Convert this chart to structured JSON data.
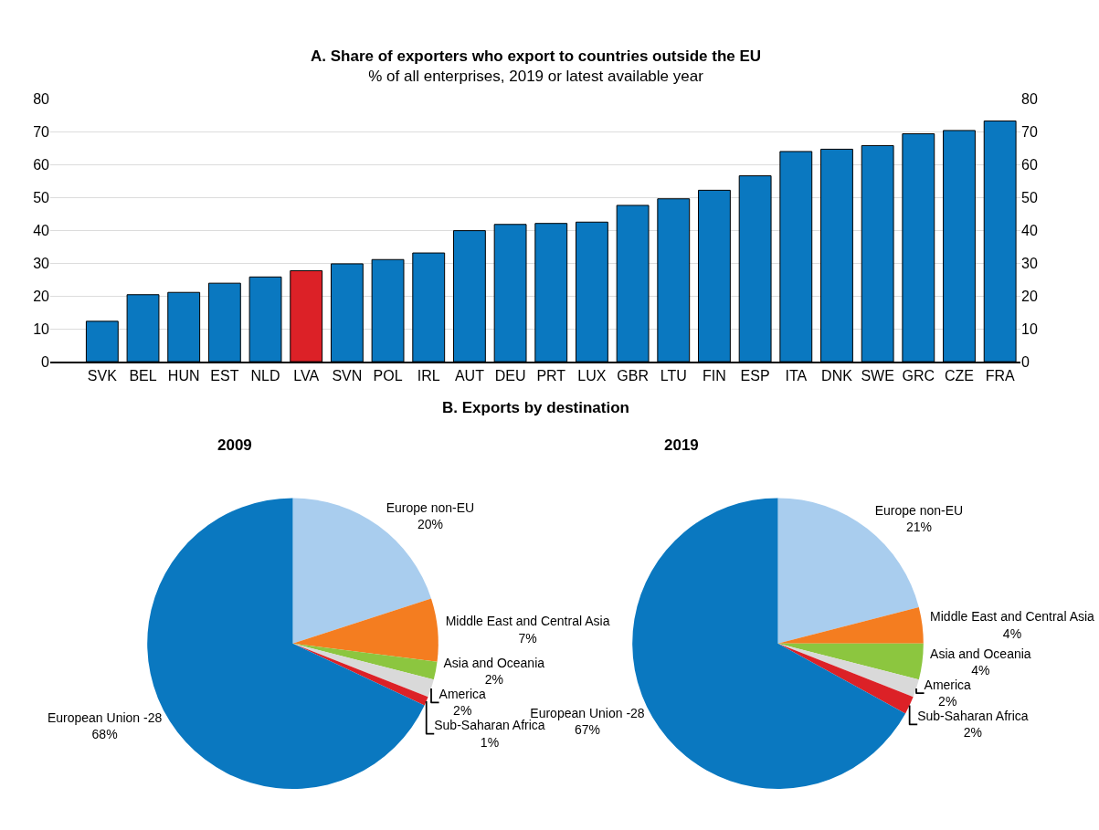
{
  "chart_data": [
    {
      "type": "bar",
      "title": "A. Share of exporters who export to countries outside the EU",
      "subtitle": "% of all enterprises, 2019 or latest available year",
      "categories": [
        "SVK",
        "BEL",
        "HUN",
        "EST",
        "NLD",
        "LVA",
        "SVN",
        "POL",
        "IRL",
        "AUT",
        "DEU",
        "PRT",
        "LUX",
        "GBR",
        "LTU",
        "FIN",
        "ESP",
        "ITA",
        "DNK",
        "SWE",
        "GRC",
        "CZE",
        "FRA"
      ],
      "values": [
        12.3,
        20.4,
        21.1,
        23.9,
        25.8,
        27.7,
        29.8,
        31.1,
        33.1,
        39.9,
        41.8,
        42.1,
        42.5,
        47.6,
        49.6,
        52.2,
        56.6,
        64.0,
        64.7,
        65.8,
        69.4,
        70.4,
        73.3
      ],
      "colors": [
        "#0a78c0",
        "#0a78c0",
        "#0a78c0",
        "#0a78c0",
        "#0a78c0",
        "#dc2127",
        "#0a78c0",
        "#0a78c0",
        "#0a78c0",
        "#0a78c0",
        "#0a78c0",
        "#0a78c0",
        "#0a78c0",
        "#0a78c0",
        "#0a78c0",
        "#0a78c0",
        "#0a78c0",
        "#0a78c0",
        "#0a78c0",
        "#0a78c0",
        "#0a78c0",
        "#0a78c0",
        "#0a78c0"
      ],
      "ylim": [
        0,
        80
      ],
      "yticks": [
        0,
        10,
        20,
        30,
        40,
        50,
        60,
        70,
        80
      ],
      "y2lim": [
        0,
        80
      ],
      "y2ticks": [
        0,
        10,
        20,
        30,
        40,
        50,
        60,
        70,
        80
      ],
      "grid": "y",
      "legend": false
    },
    {
      "type": "pie",
      "title": "2009",
      "annotations": [
        "B. Exports by destination"
      ],
      "categories": [
        "Europe non-EU",
        "Middle East and Central Asia",
        "Asia and Oceania",
        "America",
        "Sub-Saharan Africa",
        "European Union -28"
      ],
      "values": [
        20,
        7,
        2,
        2,
        1,
        68
      ],
      "value_labels": [
        "20%",
        "7%",
        "2%",
        "2%",
        "1%",
        "68%"
      ],
      "colors": [
        "#a9cdee",
        "#f47d20",
        "#8cc63f",
        "#d9d9d9",
        "#dc2127",
        "#0a78c0"
      ],
      "legend": false
    },
    {
      "type": "pie",
      "title": "2019",
      "categories": [
        "Europe non-EU",
        "Middle East and Central Asia",
        "Asia and Oceania",
        "America",
        "Sub-Saharan Africa",
        "European Union -28"
      ],
      "values": [
        21,
        4,
        4,
        2,
        2,
        67
      ],
      "value_labels": [
        "21%",
        "4%",
        "4%",
        "2%",
        "2%",
        "67%"
      ],
      "colors": [
        "#a9cdee",
        "#f47d20",
        "#8cc63f",
        "#d9d9d9",
        "#dc2127",
        "#0a78c0"
      ],
      "legend": false
    }
  ]
}
